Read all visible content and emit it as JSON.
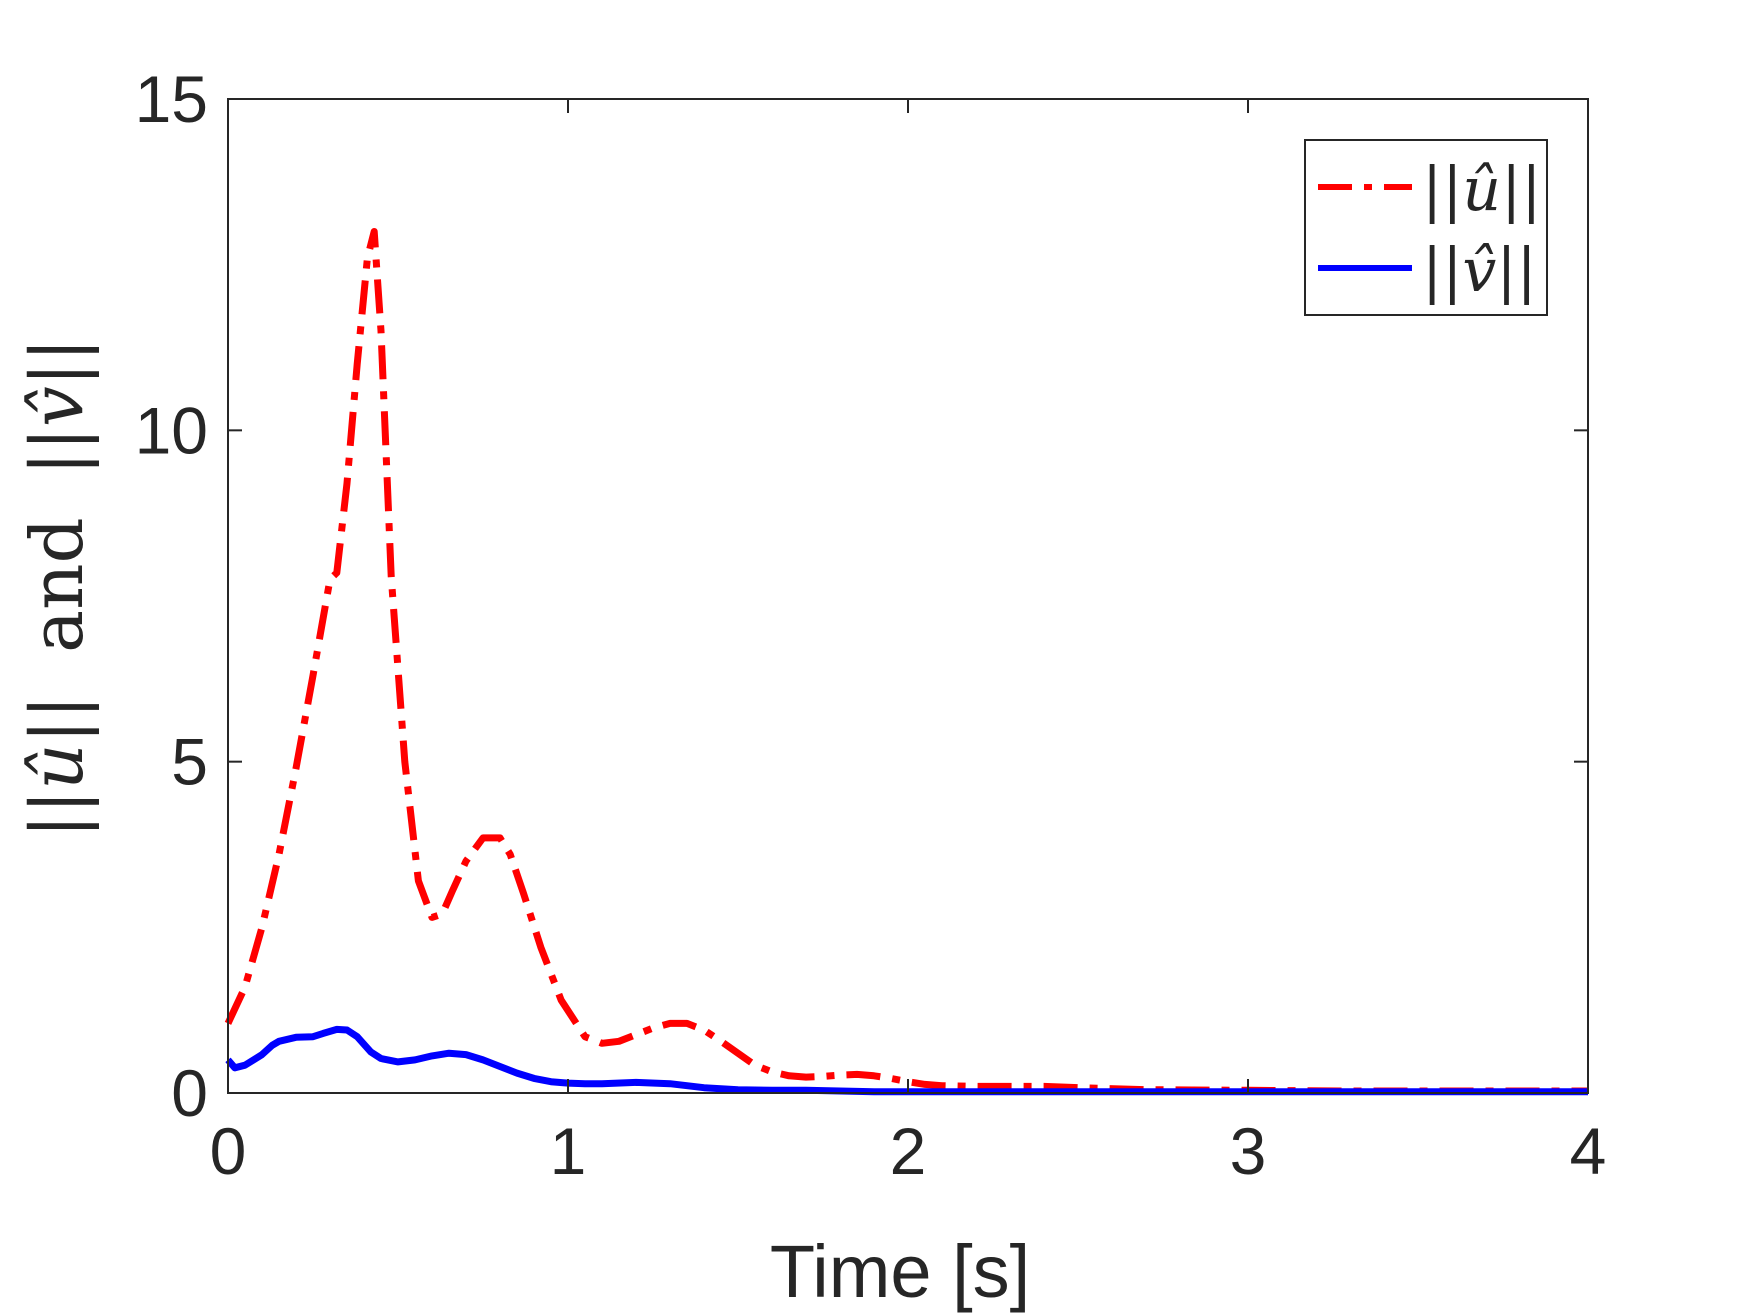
{
  "chart_data": {
    "type": "line",
    "title": "",
    "xlabel": "Time [s]",
    "ylabel": {
      "norm1": "||û||",
      "conj": "and",
      "norm2": "||v̂||"
    },
    "xlim": [
      0,
      4
    ],
    "ylim": [
      0,
      15
    ],
    "xticks": [
      0,
      1,
      2,
      3,
      4
    ],
    "yticks": [
      0,
      5,
      10,
      15
    ],
    "grid": false,
    "legend_position": "top-right",
    "series": [
      {
        "name": "||û||",
        "var": "u",
        "color": "#ff0000",
        "style": "dash-dot",
        "x": [
          0,
          0.05,
          0.1,
          0.15,
          0.2,
          0.25,
          0.3,
          0.32,
          0.35,
          0.38,
          0.41,
          0.43,
          0.45,
          0.48,
          0.52,
          0.56,
          0.6,
          0.63,
          0.66,
          0.7,
          0.75,
          0.8,
          0.83,
          0.87,
          0.92,
          0.98,
          1.05,
          1.1,
          1.15,
          1.2,
          1.25,
          1.3,
          1.35,
          1.4,
          1.45,
          1.5,
          1.55,
          1.6,
          1.65,
          1.7,
          1.75,
          1.8,
          1.85,
          1.9,
          1.95,
          2.0,
          2.05,
          2.1,
          2.2,
          2.3,
          2.4,
          2.5,
          2.7,
          3.0,
          3.3,
          3.6,
          4.0
        ],
        "y": [
          1.05,
          1.6,
          2.5,
          3.6,
          4.9,
          6.3,
          7.75,
          7.85,
          9.2,
          11.0,
          12.6,
          13.0,
          11.5,
          7.8,
          5.0,
          3.2,
          2.65,
          2.7,
          3.05,
          3.5,
          3.85,
          3.85,
          3.6,
          3.0,
          2.2,
          1.4,
          0.85,
          0.75,
          0.78,
          0.88,
          0.98,
          1.05,
          1.05,
          0.95,
          0.78,
          0.6,
          0.42,
          0.32,
          0.26,
          0.24,
          0.25,
          0.27,
          0.28,
          0.26,
          0.22,
          0.17,
          0.13,
          0.11,
          0.1,
          0.1,
          0.1,
          0.08,
          0.05,
          0.04,
          0.03,
          0.03,
          0.03
        ]
      },
      {
        "name": "||v̂||",
        "var": "v",
        "color": "#0000ff",
        "style": "solid",
        "x": [
          0,
          0.02,
          0.05,
          0.1,
          0.13,
          0.15,
          0.2,
          0.25,
          0.28,
          0.32,
          0.35,
          0.38,
          0.42,
          0.45,
          0.5,
          0.55,
          0.6,
          0.65,
          0.7,
          0.75,
          0.8,
          0.85,
          0.9,
          0.95,
          1.0,
          1.05,
          1.1,
          1.2,
          1.3,
          1.4,
          1.5,
          1.6,
          1.7,
          1.8,
          1.9,
          2.0,
          2.2,
          2.5,
          3.0,
          3.5,
          4.0
        ],
        "y": [
          0.5,
          0.38,
          0.42,
          0.58,
          0.72,
          0.78,
          0.84,
          0.85,
          0.9,
          0.96,
          0.95,
          0.85,
          0.62,
          0.52,
          0.47,
          0.5,
          0.56,
          0.6,
          0.58,
          0.5,
          0.4,
          0.3,
          0.22,
          0.17,
          0.15,
          0.14,
          0.14,
          0.16,
          0.14,
          0.08,
          0.05,
          0.04,
          0.04,
          0.03,
          0.02,
          0.02,
          0.02,
          0.02,
          0.02,
          0.02,
          0.02
        ]
      }
    ]
  }
}
